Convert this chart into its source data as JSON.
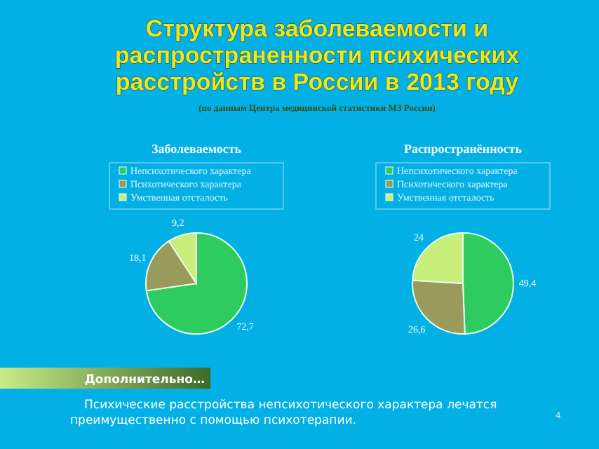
{
  "chart_data": [
    {
      "type": "other",
      "title": "Структура заболеваемости и распространенности психических расстройств в России в 2013 году",
      "subtitle": "(по данным Центра медицинской статистики МЗ России)",
      "annotations": [
        "Дополнительно…",
        "Психические расстройства непсихотического характера лечатся преимущественно с помощью психотерапии.",
        "4"
      ]
    },
    {
      "type": "pie",
      "title": "Заболеваемость",
      "categories": [
        "Непсихотического характера",
        "Психотического характера",
        "Умственная отсталость"
      ],
      "values": [
        72.7,
        18.1,
        9.2
      ],
      "value_labels": [
        "72,7",
        "18,1",
        "9,2"
      ],
      "colors": [
        "#2ecc5e",
        "#9a9a5c",
        "#c8ee7c"
      ],
      "legend": "top"
    },
    {
      "type": "pie",
      "title": "Распространённость",
      "categories": [
        "Непсихотического характера",
        "Психотического характера",
        "Умственная отсталость"
      ],
      "values": [
        49.4,
        26.6,
        24
      ],
      "value_labels": [
        "49,4",
        "26,6",
        "24"
      ],
      "colors": [
        "#2ecc5e",
        "#9a9a5c",
        "#c8ee7c"
      ],
      "legend": "top"
    }
  ]
}
